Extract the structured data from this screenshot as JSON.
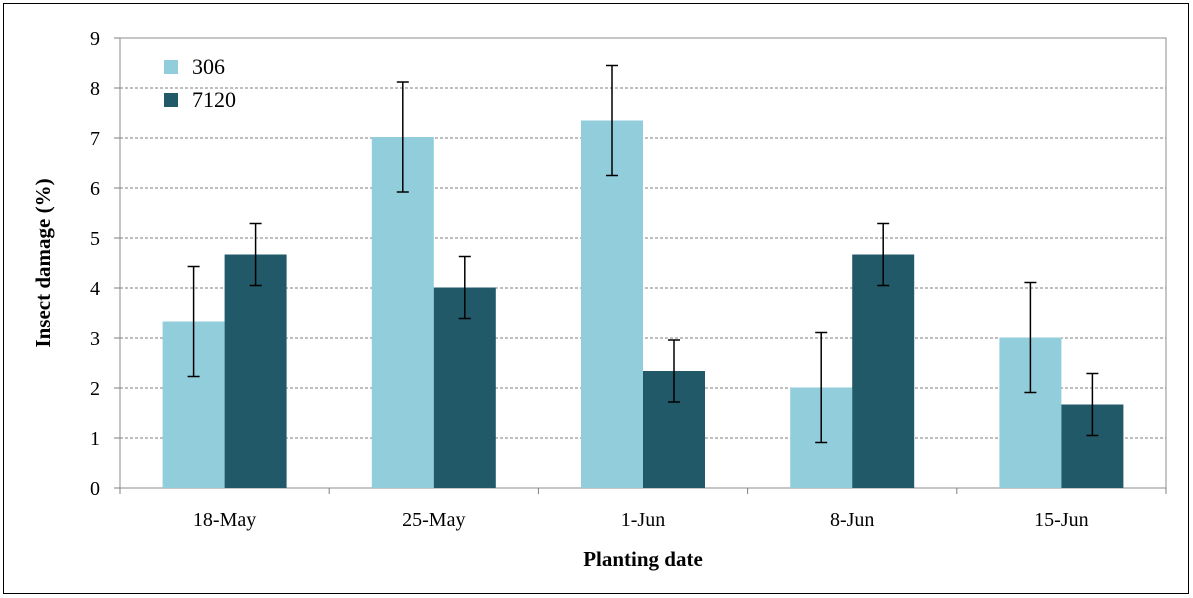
{
  "chart_data": {
    "type": "bar",
    "title": "",
    "xlabel": "Planting date",
    "ylabel": "Insect damage (%)",
    "categories": [
      "18-May",
      "25-May",
      "1-Jun",
      "8-Jun",
      "15-Jun"
    ],
    "ylim": [
      0,
      9
    ],
    "yticks": [
      "0",
      "1",
      "2",
      "3",
      "4",
      "5",
      "6",
      "7",
      "8",
      "9"
    ],
    "grid": true,
    "legend_position": "top-left",
    "series": [
      {
        "name": "306",
        "color": "#92CDDC",
        "values": [
          3.33,
          7.02,
          7.35,
          2.01,
          3.01
        ],
        "error": [
          1.1,
          1.1,
          1.1,
          1.1,
          1.1
        ]
      },
      {
        "name": "7120",
        "color": "#215968",
        "values": [
          4.67,
          4.01,
          2.34,
          4.67,
          1.67
        ],
        "error": [
          0.62,
          0.62,
          0.62,
          0.62,
          0.62
        ]
      }
    ]
  }
}
